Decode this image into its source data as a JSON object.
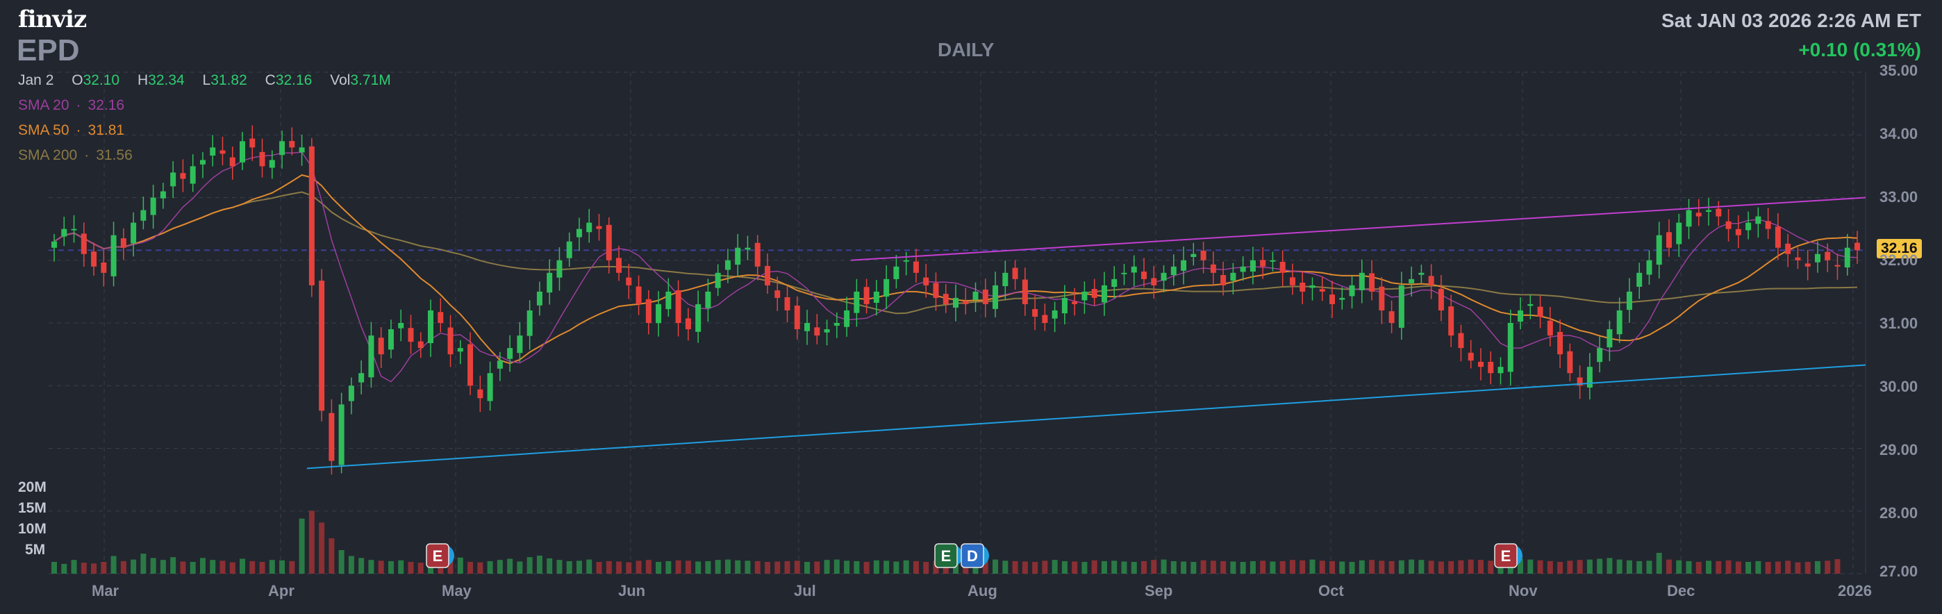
{
  "header": {
    "logo": "finviz",
    "ticker": "EPD",
    "timeframe": "DAILY",
    "datetime": "Sat JAN 03 2026 2:26 AM ET",
    "change": "+0.10 (0.31%)"
  },
  "ohlc": {
    "date": "Jan 2",
    "o_label": "O",
    "o": "32.10",
    "h_label": "H",
    "h": "32.34",
    "l_label": "L",
    "l": "31.82",
    "c_label": "C",
    "c": "32.16",
    "vol_label": "Vol",
    "vol": "3.71M"
  },
  "indicators": {
    "sma20_label": "SMA 20",
    "sma20": "32.16",
    "sma50_label": "SMA 50",
    "sma50": "31.81",
    "sma200_label": "SMA 200",
    "sma200": "31.56"
  },
  "last_price_label": "32.16",
  "events": [
    {
      "label": "E",
      "x_date": "2025-04-30",
      "kind": "earnings"
    },
    {
      "label": "E",
      "x_date": "2025-07-30",
      "kind": "earnings"
    },
    {
      "label": "D",
      "x_date": "2025-07-31",
      "kind": "dividend"
    },
    {
      "label": "E",
      "x_date": "2025-11-03",
      "kind": "earnings"
    }
  ],
  "colors": {
    "up": "#2fbf5a",
    "down": "#e8413c",
    "sma20": "#9c3f9d",
    "sma50": "#e08a2e",
    "sma200": "#8a7a45",
    "upper_trend": "#c23fd0",
    "lower_trend": "#1f9fe0",
    "last_line": "#3b3f9a",
    "grid": "#3a3f4b"
  },
  "chart_data": {
    "type": "candlestick",
    "x_labels": [
      "Mar",
      "Apr",
      "May",
      "Jun",
      "Jul",
      "Aug",
      "Sep",
      "Oct",
      "Nov",
      "Dec",
      "2026"
    ],
    "y_ticks": [
      "35.00",
      "34.00",
      "33.00",
      "32.00",
      "31.00",
      "30.00",
      "29.00",
      "28.00",
      "27.00"
    ],
    "ylim": [
      27.0,
      35.0
    ],
    "volume_ticks": [
      "20M",
      "15M",
      "10M",
      "5M"
    ],
    "last_close": 32.16,
    "trendlines": [
      {
        "name": "upper",
        "from": {
          "date": "2025-07-10",
          "price": 32.0
        },
        "to": {
          "date": "2026-01-02",
          "price": 33.0
        }
      },
      {
        "name": "lower",
        "from": {
          "date": "2025-04-07",
          "price": 28.68
        },
        "to": {
          "date": "2026-01-02",
          "price": 30.33
        }
      }
    ],
    "closes": [
      32.3,
      32.5,
      32.5,
      32.1,
      31.9,
      31.8,
      32.4,
      32.2,
      32.6,
      32.8,
      33.0,
      33.1,
      33.4,
      33.3,
      33.5,
      33.6,
      33.8,
      33.7,
      33.5,
      33.9,
      33.8,
      33.5,
      33.6,
      33.9,
      33.8,
      33.8,
      31.6,
      29.6,
      28.8,
      29.7,
      30.0,
      30.2,
      30.8,
      30.5,
      30.9,
      31.0,
      30.7,
      30.6,
      31.2,
      31.0,
      30.5,
      30.6,
      30.0,
      29.8,
      30.2,
      30.4,
      30.6,
      30.8,
      31.2,
      31.5,
      31.8,
      32.0,
      32.3,
      32.5,
      32.6,
      32.5,
      32.0,
      31.8,
      31.6,
      31.3,
      31.0,
      31.3,
      31.5,
      31.0,
      30.9,
      31.3,
      31.5,
      31.8,
      32.0,
      32.2,
      32.2,
      31.9,
      31.6,
      31.4,
      31.2,
      30.9,
      31.0,
      30.8,
      30.9,
      31.0,
      31.2,
      31.5,
      31.3,
      31.5,
      31.7,
      31.9,
      32.0,
      31.8,
      31.6,
      31.4,
      31.3,
      31.4,
      31.3,
      31.5,
      31.3,
      31.6,
      31.8,
      31.7,
      31.3,
      31.1,
      31.0,
      31.2,
      31.4,
      31.3,
      31.5,
      31.4,
      31.6,
      31.7,
      31.8,
      31.9,
      31.7,
      31.6,
      31.8,
      31.9,
      32.0,
      32.1,
      32.0,
      31.8,
      31.6,
      31.8,
      31.9,
      32.0,
      31.9,
      32.0,
      31.8,
      31.6,
      31.5,
      31.6,
      31.5,
      31.3,
      31.4,
      31.6,
      31.8,
      31.5,
      31.2,
      31.0,
      31.6,
      31.7,
      31.8,
      31.6,
      31.2,
      30.8,
      30.6,
      30.4,
      30.3,
      30.2,
      30.3,
      31.0,
      31.2,
      31.3,
      31.1,
      30.8,
      30.5,
      30.2,
      30.0,
      30.3,
      30.6,
      30.9,
      31.2,
      31.5,
      31.8,
      32.0,
      32.4,
      32.2,
      32.6,
      32.8,
      32.7,
      32.8,
      32.7,
      32.5,
      32.4,
      32.6,
      32.7,
      32.5,
      32.2,
      32.1,
      32.0,
      31.9,
      32.1,
      32.0,
      31.9,
      32.2,
      32.16
    ],
    "volumes_m": [
      3.0,
      2.5,
      3.5,
      2.8,
      2.6,
      3.0,
      4.5,
      3.2,
      3.6,
      5.1,
      4.0,
      3.5,
      4.2,
      3.1,
      3.0,
      4.0,
      3.5,
      3.3,
      2.9,
      3.8,
      3.2,
      3.0,
      3.5,
      3.4,
      3.2,
      14.0,
      16.0,
      13.0,
      9.0,
      6.0,
      4.5,
      4.0,
      3.5,
      3.3,
      3.2,
      3.4,
      3.0,
      2.8,
      3.3,
      3.0,
      3.5,
      4.1,
      3.0,
      2.9,
      3.2,
      3.5,
      3.8,
      3.1,
      4.2,
      4.6,
      3.9,
      3.5,
      3.2,
      3.3,
      3.6,
      3.0,
      3.2,
      3.1,
      2.9,
      3.3,
      3.5,
      3.0,
      3.2,
      3.4,
      3.3,
      3.1,
      3.2,
      3.5,
      3.6,
      3.4,
      3.3,
      3.2,
      3.0,
      3.1,
      3.2,
      3.3,
      3.0,
      3.1,
      3.5,
      3.6,
      3.3,
      3.2,
      3.0,
      3.4,
      3.3,
      3.1,
      3.4,
      3.2,
      3.0,
      3.3,
      3.2,
      3.5,
      3.4,
      3.1,
      3.2,
      3.6,
      3.3,
      3.2,
      3.1,
      3.0,
      3.3,
      3.5,
      3.2,
      3.1,
      3.0,
      3.4,
      3.2,
      3.3,
      3.1,
      3.0,
      3.2,
      3.5,
      3.6,
      3.2,
      3.1,
      3.0,
      3.4,
      3.3,
      3.2,
      3.1,
      3.0,
      3.2,
      3.3,
      3.1,
      3.2,
      3.5,
      3.4,
      3.6,
      3.3,
      3.2,
      3.1,
      3.0,
      3.4,
      3.5,
      3.3,
      3.2,
      3.4,
      3.6,
      3.5,
      3.3,
      3.1,
      3.2,
      3.4,
      3.6,
      3.5,
      3.3,
      3.2,
      3.5,
      3.8,
      3.6,
      3.4,
      3.2,
      3.0,
      3.3,
      3.5,
      3.6,
      3.8,
      4.0,
      3.6,
      3.4,
      3.2,
      3.3,
      5.3,
      3.6,
      3.4,
      3.2,
      3.0,
      3.3,
      3.2,
      3.4,
      3.1,
      3.0,
      3.2,
      3.0,
      3.1,
      3.3,
      2.9,
      3.0,
      3.2,
      3.3,
      3.71
    ]
  }
}
